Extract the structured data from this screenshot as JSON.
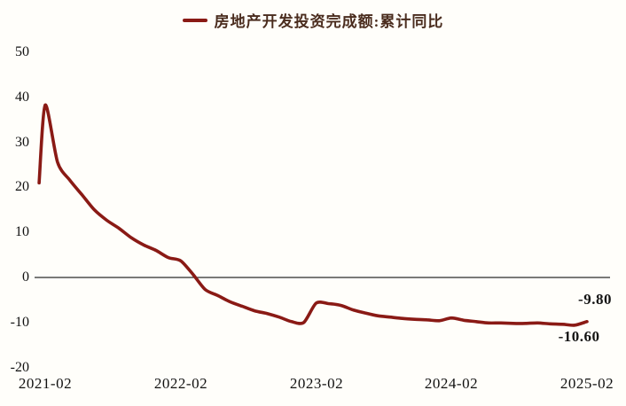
{
  "page": {
    "background": "#FFFEFA"
  },
  "chart_data": {
    "type": "line",
    "legend": "房地产开发投资完成额:累计同比",
    "legend_position": "top-center",
    "line_color": "#8A1A15",
    "legend_text_color": "#4A2C1E",
    "axis_text_color": "#111111",
    "zero_line_color": "#2B2B2B",
    "grid": false,
    "categories": [
      "2021-02",
      "2021-03",
      "2021-04",
      "2021-05",
      "2021-06",
      "2021-07",
      "2021-08",
      "2021-09",
      "2021-10",
      "2021-11",
      "2021-12",
      "2022-02",
      "2022-03",
      "2022-04",
      "2022-05",
      "2022-06",
      "2022-07",
      "2022-08",
      "2022-09",
      "2022-10",
      "2022-11",
      "2022-12",
      "2023-02",
      "2023-03",
      "2023-04",
      "2023-05",
      "2023-06",
      "2023-07",
      "2023-08",
      "2023-09",
      "2023-10",
      "2023-11",
      "2023-12",
      "2024-02",
      "2024-03",
      "2024-04",
      "2024-05",
      "2024-06",
      "2024-07",
      "2024-08",
      "2024-09",
      "2024-10",
      "2024-11",
      "2024-12",
      "2025-02"
    ],
    "values": [
      38.3,
      25.6,
      21.6,
      18.3,
      15.0,
      12.7,
      10.9,
      8.8,
      7.2,
      6.0,
      4.4,
      3.7,
      0.7,
      -2.7,
      -4.0,
      -5.4,
      -6.4,
      -7.4,
      -8.0,
      -8.8,
      -9.8,
      -10.0,
      -5.7,
      -5.8,
      -6.2,
      -7.2,
      -7.9,
      -8.5,
      -8.8,
      -9.1,
      -9.3,
      -9.4,
      -9.6,
      -9.0,
      -9.5,
      -9.8,
      -10.1,
      -10.1,
      -10.2,
      -10.2,
      -10.1,
      -10.3,
      -10.4,
      -10.6,
      -9.8
    ],
    "lead_in_value": 21.0,
    "yaxis": {
      "ticks": [
        "50",
        "40",
        "30",
        "20",
        "10",
        "0",
        "-10",
        "-20"
      ],
      "range": [
        -20,
        50
      ],
      "zero_line": true
    },
    "xaxis": {
      "ticks": [
        "2021-02",
        "2022-02",
        "2023-02",
        "2024-02",
        "2025-02"
      ]
    },
    "annotations": [
      {
        "text": "-9.80",
        "category": "2025-02",
        "value": -9.8,
        "placement": "above"
      },
      {
        "text": "-10.60",
        "category": "2024-12",
        "value": -10.6,
        "placement": "below"
      }
    ]
  }
}
